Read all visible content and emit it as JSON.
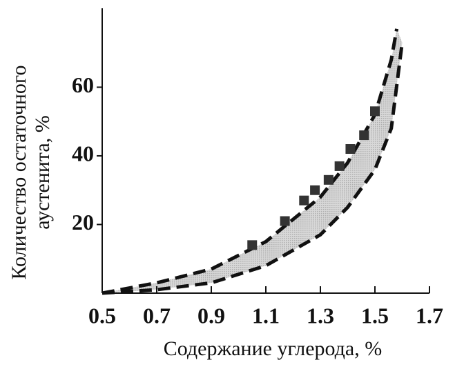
{
  "chart_data": {
    "type": "band-scatter",
    "x_label": "Содержание углерода, %",
    "y_label": [
      "Количество остаточного",
      "аустенита, %"
    ],
    "xlim": [
      0.5,
      1.7
    ],
    "xticks": [
      0.5,
      0.7,
      0.9,
      1.1,
      1.3,
      1.5,
      1.7
    ],
    "ylim": [
      0,
      83
    ],
    "yticks": [
      20,
      40,
      60
    ],
    "band": {
      "upper_x": [
        0.5,
        0.7,
        0.9,
        1.1,
        1.3,
        1.4,
        1.5,
        1.56,
        1.58
      ],
      "upper": [
        0,
        3,
        7,
        15,
        28,
        38,
        52,
        68,
        77
      ],
      "lower_x": [
        0.5,
        0.7,
        0.9,
        1.1,
        1.3,
        1.4,
        1.5,
        1.56,
        1.6
      ],
      "lower": [
        0,
        1,
        3,
        8,
        17,
        25,
        36,
        48,
        73
      ],
      "color": "#b0b0b0"
    },
    "points": {
      "x": [
        1.05,
        1.17,
        1.24,
        1.28,
        1.33,
        1.37,
        1.41,
        1.46,
        1.5
      ],
      "values": [
        14,
        21,
        27,
        30,
        33,
        37,
        42,
        46,
        53
      ],
      "color": "#333333"
    }
  }
}
